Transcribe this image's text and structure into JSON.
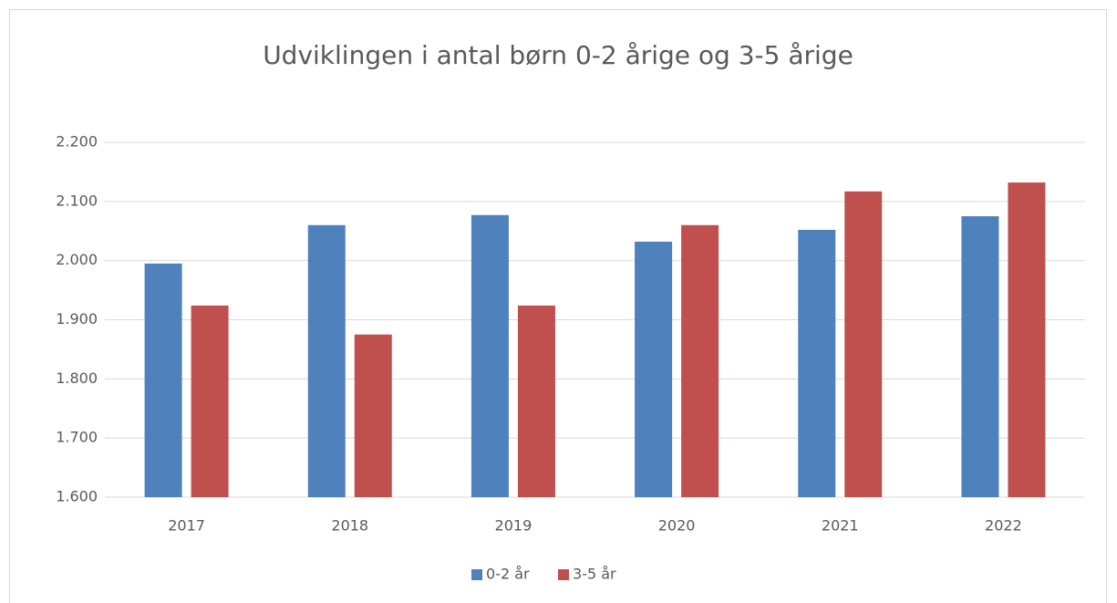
{
  "chart_data": {
    "type": "bar",
    "title": "Udviklingen i antal børn 0-2 årige og 3-5 årige",
    "categories": [
      "2017",
      "2018",
      "2019",
      "2020",
      "2021",
      "2022"
    ],
    "series": [
      {
        "name": "0-2 år",
        "color": "#4f81bd",
        "values": [
          1995,
          2060,
          2077,
          2032,
          2052,
          2075
        ]
      },
      {
        "name": "3-5 år",
        "color": "#c0504d",
        "values": [
          1924,
          1875,
          1924,
          2060,
          2117,
          2132
        ]
      }
    ],
    "ylim": [
      1600,
      2200
    ],
    "yticks": [
      {
        "value": 1600,
        "label": "1.600"
      },
      {
        "value": 1700,
        "label": "1.700"
      },
      {
        "value": 1800,
        "label": "1.800"
      },
      {
        "value": 1900,
        "label": "1.900"
      },
      {
        "value": 2000,
        "label": "2.000"
      },
      {
        "value": 2100,
        "label": "2.100"
      },
      {
        "value": 2200,
        "label": "2.200"
      }
    ],
    "grid": true,
    "legend": "bottom"
  }
}
